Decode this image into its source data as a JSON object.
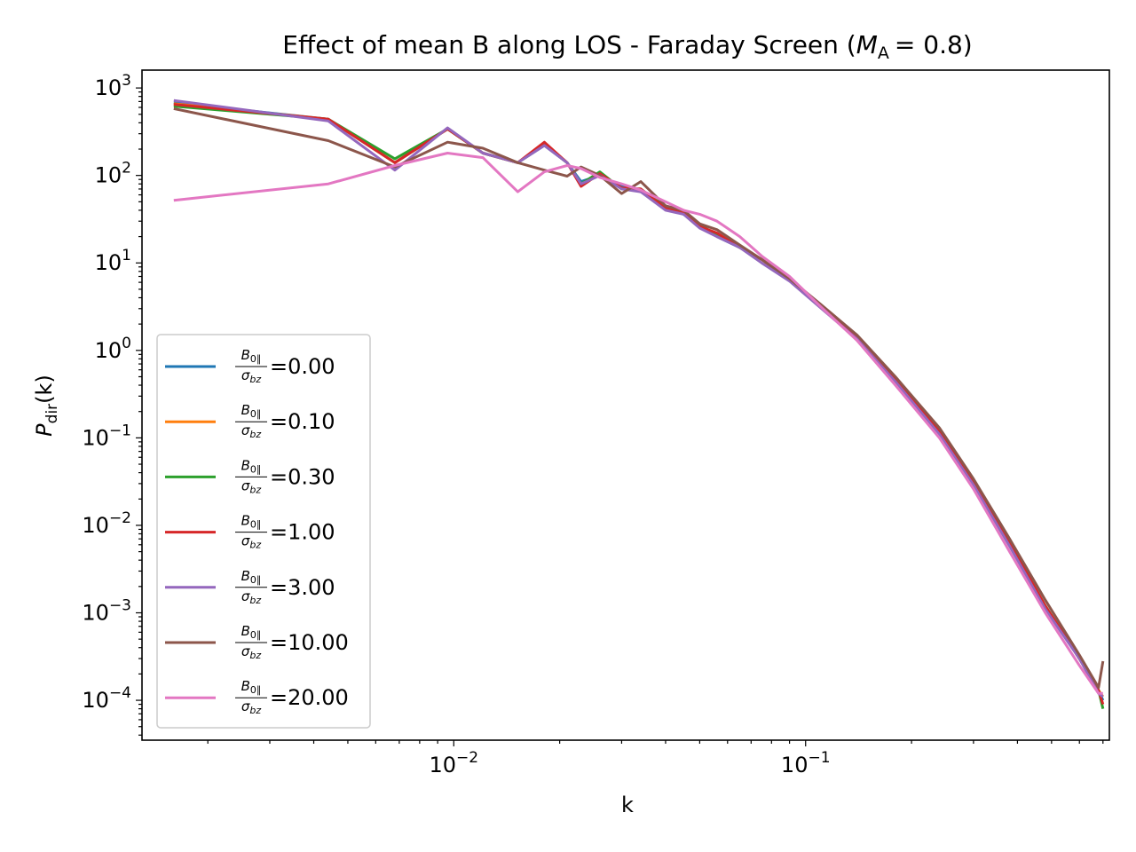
{
  "chart_data": {
    "type": "line",
    "title": "Effect of mean B along LOS - Faraday Screen (",
    "title_math": {
      "symbol": "M",
      "subscript": "A",
      "value": "= 0.8",
      "close": ")"
    },
    "xlabel": "k",
    "ylabel": {
      "symbol": "P",
      "subscript": "dir",
      "arg": "(k)"
    },
    "xscale": "log",
    "yscale": "log",
    "xlim": [
      0.0013,
      0.73
    ],
    "ylim": [
      3.5e-05,
      1600
    ],
    "grid": false,
    "legend_placement": "lower-left",
    "x_ticks": [
      {
        "value": 0.01,
        "base": "10",
        "exp": "−2"
      },
      {
        "value": 0.1,
        "base": "10",
        "exp": "−1"
      }
    ],
    "y_ticks": [
      {
        "value": 1000,
        "base": "10",
        "exp": "3"
      },
      {
        "value": 100,
        "base": "10",
        "exp": "2"
      },
      {
        "value": 10,
        "base": "10",
        "exp": "1"
      },
      {
        "value": 1,
        "base": "10",
        "exp": "0"
      },
      {
        "value": 0.1,
        "base": "10",
        "exp": "−1"
      },
      {
        "value": 0.01,
        "base": "10",
        "exp": "−2"
      },
      {
        "value": 0.001,
        "base": "10",
        "exp": "−3"
      },
      {
        "value": 0.0001,
        "base": "10",
        "exp": "−4"
      }
    ],
    "legend_fraction": {
      "numerator": "B",
      "numerator_sub": "0∥",
      "denominator": "σ",
      "denominator_sub": "bz"
    },
    "series": [
      {
        "name": "=0.00",
        "color": "#1f77b4",
        "x": [
          0.0016,
          0.0044,
          0.0068,
          0.0096,
          0.0121,
          0.0152,
          0.0181,
          0.021,
          0.023,
          0.026,
          0.03,
          0.034,
          0.04,
          0.045,
          0.05,
          0.056,
          0.065,
          0.075,
          0.09,
          0.11,
          0.14,
          0.18,
          0.24,
          0.3,
          0.38,
          0.48,
          0.6,
          0.68,
          0.7
        ],
        "y": [
          680,
          440,
          140,
          340,
          180,
          140,
          220,
          140,
          85,
          100,
          75,
          65,
          45,
          36,
          28,
          20,
          15,
          11,
          6.5,
          3.3,
          1.4,
          0.45,
          0.12,
          0.03,
          0.006,
          0.0012,
          0.0003,
          0.00013,
          0.0001
        ]
      },
      {
        "name": "=0.10",
        "color": "#ff7f0e",
        "x": [
          0.0016,
          0.0044,
          0.0068,
          0.0096,
          0.0121,
          0.0152,
          0.0181,
          0.021,
          0.023,
          0.026,
          0.03,
          0.034,
          0.04,
          0.045,
          0.05,
          0.056,
          0.065,
          0.075,
          0.09,
          0.11,
          0.14,
          0.18,
          0.24,
          0.3,
          0.38,
          0.48,
          0.6,
          0.68,
          0.7
        ],
        "y": [
          660,
          440,
          140,
          340,
          180,
          140,
          225,
          140,
          80,
          105,
          72,
          68,
          44,
          37,
          27,
          21,
          15,
          11,
          6.3,
          3.2,
          1.4,
          0.46,
          0.12,
          0.031,
          0.0062,
          0.0012,
          0.0003,
          0.00013,
          0.00011
        ]
      },
      {
        "name": "=0.30",
        "color": "#2ca02c",
        "x": [
          0.0016,
          0.0044,
          0.0068,
          0.0096,
          0.0121,
          0.0152,
          0.0181,
          0.021,
          0.023,
          0.026,
          0.03,
          0.034,
          0.04,
          0.045,
          0.05,
          0.056,
          0.065,
          0.075,
          0.09,
          0.11,
          0.14,
          0.18,
          0.24,
          0.3,
          0.38,
          0.48,
          0.6,
          0.68,
          0.7
        ],
        "y": [
          620,
          440,
          155,
          340,
          180,
          140,
          225,
          140,
          80,
          110,
          70,
          70,
          43,
          37,
          27,
          21,
          15,
          11,
          6.4,
          3.2,
          1.45,
          0.46,
          0.12,
          0.031,
          0.0063,
          0.0012,
          0.0003,
          0.00013,
          8e-05
        ]
      },
      {
        "name": "=1.00",
        "color": "#d62728",
        "x": [
          0.0016,
          0.0044,
          0.0068,
          0.0096,
          0.0121,
          0.0152,
          0.0181,
          0.021,
          0.023,
          0.026,
          0.03,
          0.034,
          0.04,
          0.045,
          0.05,
          0.056,
          0.065,
          0.075,
          0.09,
          0.11,
          0.14,
          0.18,
          0.24,
          0.3,
          0.38,
          0.48,
          0.6,
          0.68,
          0.7
        ],
        "y": [
          650,
          440,
          140,
          340,
          180,
          140,
          240,
          140,
          75,
          105,
          72,
          70,
          42,
          37,
          26,
          22,
          15,
          11,
          6.5,
          3.3,
          1.45,
          0.47,
          0.12,
          0.032,
          0.0064,
          0.0012,
          0.0003,
          0.00013,
          9e-05
        ]
      },
      {
        "name": "=3.00",
        "color": "#9467bd",
        "x": [
          0.0016,
          0.0044,
          0.0068,
          0.0096,
          0.0121,
          0.0152,
          0.0181,
          0.021,
          0.023,
          0.026,
          0.03,
          0.034,
          0.04,
          0.045,
          0.05,
          0.056,
          0.065,
          0.075,
          0.09,
          0.11,
          0.14,
          0.18,
          0.24,
          0.3,
          0.38,
          0.48,
          0.6,
          0.68,
          0.7
        ],
        "y": [
          720,
          420,
          115,
          350,
          180,
          140,
          220,
          140,
          80,
          100,
          70,
          65,
          40,
          36,
          25,
          20,
          15,
          10,
          6.2,
          3.1,
          1.35,
          0.44,
          0.11,
          0.029,
          0.0058,
          0.0011,
          0.0003,
          0.00012,
          0.00011
        ]
      },
      {
        "name": "=10.00",
        "color": "#8c564b",
        "x": [
          0.0016,
          0.0044,
          0.0068,
          0.0096,
          0.0121,
          0.0152,
          0.0181,
          0.021,
          0.023,
          0.026,
          0.03,
          0.034,
          0.04,
          0.045,
          0.05,
          0.056,
          0.065,
          0.075,
          0.09,
          0.11,
          0.14,
          0.18,
          0.24,
          0.3,
          0.38,
          0.48,
          0.6,
          0.68,
          0.7
        ],
        "y": [
          580,
          250,
          125,
          240,
          205,
          140,
          115,
          98,
          125,
          100,
          62,
          85,
          45,
          40,
          28,
          24,
          16,
          11,
          6.6,
          3.4,
          1.5,
          0.5,
          0.13,
          0.034,
          0.007,
          0.0014,
          0.00033,
          0.00014,
          0.00028
        ]
      },
      {
        "name": "=20.00",
        "color": "#e377c2",
        "x": [
          0.0016,
          0.0044,
          0.0068,
          0.0096,
          0.0121,
          0.0152,
          0.0181,
          0.021,
          0.023,
          0.026,
          0.03,
          0.034,
          0.04,
          0.045,
          0.05,
          0.056,
          0.065,
          0.075,
          0.09,
          0.11,
          0.14,
          0.18,
          0.24,
          0.3,
          0.38,
          0.48,
          0.6,
          0.68,
          0.7
        ],
        "y": [
          52,
          80,
          130,
          180,
          160,
          65,
          110,
          130,
          120,
          95,
          80,
          68,
          50,
          40,
          36,
          30,
          20,
          12,
          7,
          3.2,
          1.3,
          0.4,
          0.1,
          0.026,
          0.005,
          0.001,
          0.00025,
          0.00012,
          0.00012
        ]
      }
    ]
  }
}
